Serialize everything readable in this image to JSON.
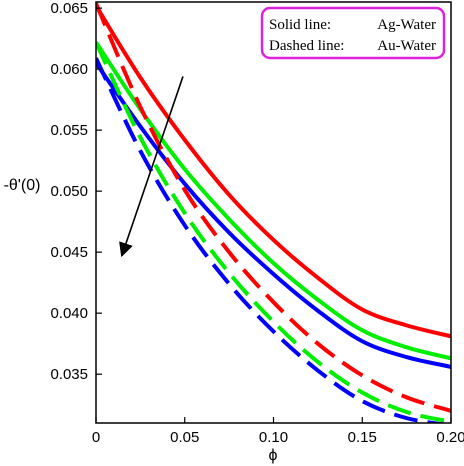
{
  "chart_data": {
    "type": "line",
    "xlabel": "ϕ",
    "ylabel": "-θ'(0)",
    "xlim": [
      0,
      0.2
    ],
    "ylim": [
      0.031,
      0.0655
    ],
    "xticks": [
      0,
      0.05,
      0.1,
      0.15,
      0.2
    ],
    "xtick_labels": [
      "0",
      "0.05",
      "0.10",
      "0.15",
      "0.20"
    ],
    "yticks": [
      0.035,
      0.04,
      0.045,
      0.05,
      0.055,
      0.06,
      0.065
    ],
    "ytick_labels": [
      "0.035",
      "0.040",
      "0.045",
      "0.050",
      "0.055",
      "0.060",
      "0.065"
    ],
    "grid": false,
    "legend": {
      "placement": "top-right",
      "border_color": "#dd22dd",
      "entries": [
        {
          "style": "Solid line:",
          "fluid": "Ag-Water"
        },
        {
          "style": "Dashed line:",
          "fluid": "Au-Water"
        }
      ]
    },
    "x": [
      0,
      0.025,
      0.05,
      0.075,
      0.1,
      0.125,
      0.15,
      0.175,
      0.2
    ],
    "series": [
      {
        "color": "#ff0000",
        "dash": false,
        "values": [
          0.0652,
          0.0593,
          0.0542,
          0.0497,
          0.046,
          0.0429,
          0.0403,
          0.039,
          0.0381
        ]
      },
      {
        "color": "#00ee00",
        "dash": false,
        "values": [
          0.0622,
          0.0567,
          0.0518,
          0.0477,
          0.0441,
          0.0411,
          0.0386,
          0.0372,
          0.0363
        ]
      },
      {
        "color": "#0000ff",
        "dash": false,
        "values": [
          0.0605,
          0.0553,
          0.0506,
          0.0466,
          0.0432,
          0.0402,
          0.0377,
          0.0364,
          0.0356
        ]
      },
      {
        "color": "#ff0000",
        "dash": true,
        "values": [
          0.0654,
          0.0569,
          0.0501,
          0.045,
          0.0409,
          0.0375,
          0.0349,
          0.0331,
          0.032
        ]
      },
      {
        "color": "#00ee00",
        "dash": true,
        "values": [
          0.0622,
          0.0544,
          0.0482,
          0.0433,
          0.0393,
          0.036,
          0.0335,
          0.0319,
          0.0311
        ]
      },
      {
        "color": "#0000ff",
        "dash": true,
        "values": [
          0.0609,
          0.0533,
          0.0472,
          0.0424,
          0.0385,
          0.0353,
          0.0328,
          0.0314,
          0.0308
        ]
      }
    ],
    "annotations": [
      {
        "type": "arrow",
        "from": [
          0.049,
          0.0594
        ],
        "to": [
          0.0145,
          0.0447
        ]
      }
    ]
  }
}
